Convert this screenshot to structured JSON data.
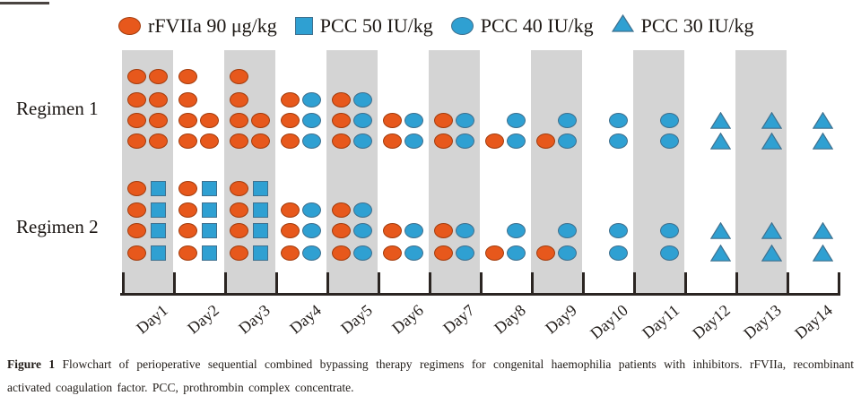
{
  "legend": {
    "items": [
      {
        "icon": "orange-ellipse-icon",
        "label": "rFVIIa 90 μg/kg"
      },
      {
        "icon": "blue-square-icon",
        "label": "PCC 50 IU/kg"
      },
      {
        "icon": "blue-ellipse-icon",
        "label": "PCC 40 IU/kg"
      },
      {
        "icon": "blue-triangle-icon",
        "label": "PCC 30 IU/kg"
      }
    ]
  },
  "colors": {
    "orange": "#E7581C",
    "orange_border": "#A33D0E",
    "blue": "#2FA0D2",
    "blue_border": "#3F708E",
    "band": "#D4D4D4",
    "axis": "#2B2522"
  },
  "chart_data": {
    "type": "scatter",
    "title": "",
    "xlabel": "",
    "ylabel": "",
    "x_categories": [
      "Day1",
      "Day2",
      "Day3",
      "Day4",
      "Day5",
      "Day6",
      "Day7",
      "Day8",
      "Day9",
      "Day10",
      "Day11",
      "Day12",
      "Day13",
      "Day14"
    ],
    "shaded_days": [
      "Day1",
      "Day3",
      "Day5",
      "Day7",
      "Day9",
      "Day11",
      "Day13"
    ],
    "marker_legend": {
      "O": "rFVIIa 90 μg/kg (orange ellipse)",
      "S": "PCC 50 IU/kg (blue square)",
      "B": "PCC 40 IU/kg (blue ellipse)",
      "T": "PCC 30 IU/kg (blue triangle)"
    },
    "legend_position": "top",
    "grid": false,
    "series": [
      {
        "name": "Regimen 1",
        "daily_doses": [
          [
            [
              "O",
              "O"
            ],
            [
              "O",
              "O"
            ],
            [
              "O",
              "O"
            ],
            [
              "O",
              "O"
            ]
          ],
          [
            [
              "O",
              null
            ],
            [
              "O",
              null
            ],
            [
              "O",
              "O"
            ],
            [
              "O",
              "O"
            ]
          ],
          [
            [
              "O",
              null
            ],
            [
              "O",
              null
            ],
            [
              "O",
              "O"
            ],
            [
              "O",
              "O"
            ]
          ],
          [
            [
              null,
              null
            ],
            [
              "O",
              "B"
            ],
            [
              "O",
              "B"
            ],
            [
              "O",
              "B"
            ]
          ],
          [
            [
              null,
              null
            ],
            [
              "O",
              "B"
            ],
            [
              "O",
              "B"
            ],
            [
              "O",
              "B"
            ]
          ],
          [
            [
              null,
              null
            ],
            [
              null,
              null
            ],
            [
              "O",
              "B"
            ],
            [
              "O",
              "B"
            ]
          ],
          [
            [
              null,
              null
            ],
            [
              null,
              null
            ],
            [
              "O",
              "B"
            ],
            [
              "O",
              "B"
            ]
          ],
          [
            [
              null,
              null
            ],
            [
              null,
              null
            ],
            [
              null,
              "B"
            ],
            [
              "O",
              "B"
            ]
          ],
          [
            [
              null,
              null
            ],
            [
              null,
              null
            ],
            [
              null,
              "B"
            ],
            [
              "O",
              "B"
            ]
          ],
          [
            [
              null,
              null
            ],
            [
              null,
              null
            ],
            [
              null,
              "B"
            ],
            [
              null,
              "B"
            ]
          ],
          [
            [
              null,
              null
            ],
            [
              null,
              null
            ],
            [
              null,
              "B"
            ],
            [
              null,
              "B"
            ]
          ],
          [
            [
              null,
              null
            ],
            [
              null,
              null
            ],
            [
              null,
              "T"
            ],
            [
              null,
              "T"
            ]
          ],
          [
            [
              null,
              null
            ],
            [
              null,
              null
            ],
            [
              null,
              "T"
            ],
            [
              null,
              "T"
            ]
          ],
          [
            [
              null,
              null
            ],
            [
              null,
              null
            ],
            [
              null,
              "T"
            ],
            [
              null,
              "T"
            ]
          ]
        ]
      },
      {
        "name": "Regimen 2",
        "daily_doses": [
          [
            [
              "O",
              "S"
            ],
            [
              "O",
              "S"
            ],
            [
              "O",
              "S"
            ],
            [
              "O",
              "S"
            ]
          ],
          [
            [
              "O",
              "S"
            ],
            [
              "O",
              "S"
            ],
            [
              "O",
              "S"
            ],
            [
              "O",
              "S"
            ]
          ],
          [
            [
              "O",
              "S"
            ],
            [
              "O",
              "S"
            ],
            [
              "O",
              "S"
            ],
            [
              "O",
              "S"
            ]
          ],
          [
            [
              null,
              null
            ],
            [
              "O",
              "B"
            ],
            [
              "O",
              "B"
            ],
            [
              "O",
              "B"
            ]
          ],
          [
            [
              null,
              null
            ],
            [
              "O",
              "B"
            ],
            [
              "O",
              "B"
            ],
            [
              "O",
              "B"
            ]
          ],
          [
            [
              null,
              null
            ],
            [
              null,
              null
            ],
            [
              "O",
              "B"
            ],
            [
              "O",
              "B"
            ]
          ],
          [
            [
              null,
              null
            ],
            [
              null,
              null
            ],
            [
              "O",
              "B"
            ],
            [
              "O",
              "B"
            ]
          ],
          [
            [
              null,
              null
            ],
            [
              null,
              null
            ],
            [
              null,
              "B"
            ],
            [
              "O",
              "B"
            ]
          ],
          [
            [
              null,
              null
            ],
            [
              null,
              null
            ],
            [
              null,
              "B"
            ],
            [
              "O",
              "B"
            ]
          ],
          [
            [
              null,
              null
            ],
            [
              null,
              null
            ],
            [
              null,
              "B"
            ],
            [
              null,
              "B"
            ]
          ],
          [
            [
              null,
              null
            ],
            [
              null,
              null
            ],
            [
              null,
              "B"
            ],
            [
              null,
              "B"
            ]
          ],
          [
            [
              null,
              null
            ],
            [
              null,
              null
            ],
            [
              null,
              "T"
            ],
            [
              null,
              "T"
            ]
          ],
          [
            [
              null,
              null
            ],
            [
              null,
              null
            ],
            [
              null,
              "T"
            ],
            [
              null,
              "T"
            ]
          ],
          [
            [
              null,
              null
            ],
            [
              null,
              null
            ],
            [
              null,
              "T"
            ],
            [
              null,
              "T"
            ]
          ]
        ]
      }
    ]
  },
  "caption": {
    "label": "Figure 1",
    "text": "Flowchart of perioperative sequential combined bypassing therapy regimens for congenital haemophilia patients with inhibitors. rFVIIa, recombinant activated coagulation factor. PCC, prothrombin complex concentrate."
  }
}
